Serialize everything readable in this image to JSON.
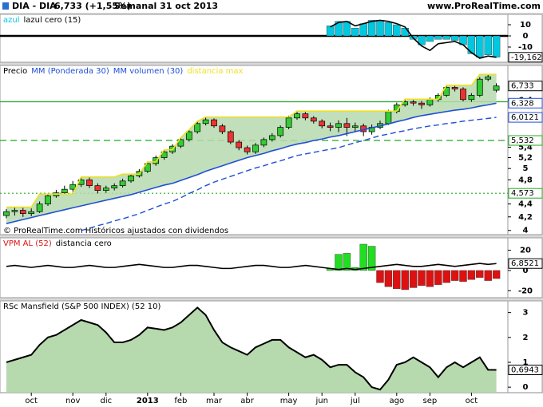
{
  "header": {
    "symbol": "DIA - DIA",
    "quote": "6,733 (+1,55%)",
    "period": "Semanal  31 oct 2013",
    "site": "www.ProRealTime.com"
  },
  "chart_data": [
    {
      "type": "bar",
      "ylim": [
        -23.6,
        19.3
      ],
      "yticks": [
        10,
        0,
        -10
      ],
      "zero_line": true,
      "series": [
        {
          "name": "azul",
          "color": "#00c8e0",
          "values": [
            null,
            null,
            null,
            null,
            null,
            null,
            null,
            null,
            null,
            null,
            null,
            null,
            null,
            null,
            null,
            null,
            null,
            null,
            null,
            null,
            null,
            null,
            null,
            null,
            null,
            null,
            null,
            null,
            null,
            null,
            null,
            null,
            null,
            null,
            null,
            null,
            null,
            null,
            null,
            9,
            13,
            13,
            7,
            11,
            14,
            14,
            12,
            10,
            7,
            -3,
            -8,
            -5,
            -3,
            -3,
            -4,
            -8,
            -16,
            -19,
            -17,
            -19
          ]
        },
        {
          "name": "lazul cero (15)",
          "type": "line",
          "color": "#000000",
          "last_label": "-19,162",
          "values": [
            null,
            null,
            null,
            null,
            null,
            null,
            null,
            null,
            null,
            null,
            null,
            null,
            null,
            null,
            null,
            null,
            null,
            null,
            null,
            null,
            null,
            null,
            null,
            null,
            null,
            null,
            null,
            null,
            null,
            null,
            null,
            null,
            null,
            null,
            null,
            null,
            null,
            null,
            null,
            8,
            12,
            13,
            9,
            11,
            13,
            14,
            13,
            11,
            8,
            -2,
            -9,
            -13,
            -7,
            -6,
            -5,
            -8,
            -15,
            -20,
            -18,
            -19.162
          ]
        }
      ]
    },
    {
      "type": "candlestick",
      "ylim": [
        3.94,
        7.25
      ],
      "log_scale": true,
      "yticks": [
        4,
        {
          "value": 4.2,
          "label": "4,2"
        },
        {
          "value": 4.4,
          "label": "4,4"
        },
        {
          "value": 4.8,
          "label": "4,8"
        },
        5,
        {
          "value": 5.2,
          "label": "5,2"
        },
        {
          "value": 5.4,
          "label": "5,4"
        },
        {
          "value": 6.4,
          "label": "6,4"
        }
      ],
      "note": "© ProRealTime.com Históricos ajustados con dividendos",
      "level_color": "#22aa22",
      "levels": [
        {
          "value": 6.36,
          "style": "solid"
        },
        {
          "value": 5.532,
          "label": "5,532",
          "style": "dashed"
        },
        {
          "value": 4.573,
          "label": "4,573",
          "style": "dotted"
        }
      ],
      "series": [
        {
          "name": "Precio",
          "type": "candlestick",
          "color": "#000000",
          "up_color": "#33cc33",
          "down_color": "#ee3333",
          "last_label": "6,733",
          "open": [
            4.22,
            4.28,
            4.3,
            4.25,
            4.28,
            4.4,
            4.53,
            4.58,
            4.64,
            4.72,
            4.8,
            4.7,
            4.62,
            4.66,
            4.7,
            4.78,
            4.87,
            4.95,
            5.09,
            5.2,
            5.31,
            5.42,
            5.55,
            5.71,
            5.88,
            5.96,
            5.83,
            5.71,
            5.5,
            5.39,
            5.31,
            5.44,
            5.55,
            5.63,
            5.8,
            6.0,
            6.09,
            6.0,
            5.93,
            5.83,
            5.8,
            5.88,
            5.8,
            5.83,
            5.71,
            5.8,
            5.88,
            6.14,
            6.29,
            6.36,
            6.33,
            6.29,
            6.41,
            6.51,
            6.7,
            6.66,
            6.41,
            6.51,
            6.9,
            6.63
          ],
          "high": [
            4.32,
            4.35,
            4.34,
            4.33,
            4.44,
            4.56,
            4.63,
            4.7,
            4.78,
            4.85,
            4.84,
            4.74,
            4.7,
            4.74,
            4.82,
            4.9,
            4.99,
            5.12,
            5.24,
            5.35,
            5.46,
            5.59,
            5.75,
            5.93,
            6.02,
            5.99,
            5.87,
            5.74,
            5.54,
            5.43,
            5.48,
            5.59,
            5.68,
            5.84,
            6.05,
            6.15,
            6.13,
            6.04,
            5.97,
            5.9,
            5.95,
            6.0,
            5.9,
            5.88,
            5.86,
            5.94,
            6.18,
            6.34,
            6.42,
            6.4,
            6.38,
            6.46,
            6.56,
            6.75,
            6.76,
            6.7,
            6.56,
            6.95,
            7.02,
            6.8
          ],
          "low": [
            4.18,
            4.22,
            4.2,
            4.21,
            4.26,
            4.37,
            4.5,
            4.55,
            4.6,
            4.68,
            4.66,
            4.57,
            4.58,
            4.62,
            4.67,
            4.75,
            4.84,
            4.92,
            5.05,
            5.16,
            5.27,
            5.38,
            5.51,
            5.67,
            5.84,
            5.79,
            5.66,
            5.46,
            5.34,
            5.26,
            5.27,
            5.4,
            5.51,
            5.59,
            5.76,
            5.96,
            5.95,
            5.88,
            5.78,
            5.72,
            5.7,
            5.62,
            5.7,
            5.62,
            5.65,
            5.76,
            5.85,
            6.1,
            6.25,
            6.27,
            6.2,
            6.25,
            6.36,
            6.47,
            6.6,
            6.37,
            6.36,
            6.47,
            6.85,
            6.58
          ],
          "close": [
            4.28,
            4.3,
            4.25,
            4.28,
            4.4,
            4.53,
            4.58,
            4.64,
            4.72,
            4.8,
            4.7,
            4.62,
            4.66,
            4.7,
            4.78,
            4.87,
            4.95,
            5.09,
            5.2,
            5.31,
            5.42,
            5.55,
            5.71,
            5.88,
            5.96,
            5.83,
            5.71,
            5.5,
            5.39,
            5.31,
            5.44,
            5.55,
            5.63,
            5.8,
            6.0,
            6.09,
            6.0,
            5.93,
            5.83,
            5.8,
            5.88,
            5.8,
            5.83,
            5.71,
            5.8,
            5.88,
            6.14,
            6.29,
            6.36,
            6.33,
            6.29,
            6.41,
            6.51,
            6.7,
            6.66,
            6.41,
            6.51,
            6.9,
            6.96,
            6.733
          ]
        },
        {
          "name": "MM (Ponderada 30)",
          "type": "line",
          "color": "#1f4fd8",
          "last_label": "6,328",
          "values": [
            4.1,
            4.13,
            4.16,
            4.19,
            4.22,
            4.25,
            4.28,
            4.31,
            4.34,
            4.37,
            4.4,
            4.43,
            4.46,
            4.49,
            4.52,
            4.55,
            4.59,
            4.63,
            4.67,
            4.71,
            4.74,
            4.79,
            4.84,
            4.89,
            4.95,
            5.0,
            5.05,
            5.1,
            5.15,
            5.2,
            5.24,
            5.28,
            5.33,
            5.37,
            5.42,
            5.46,
            5.49,
            5.53,
            5.56,
            5.6,
            5.63,
            5.67,
            5.71,
            5.75,
            5.79,
            5.83,
            5.87,
            5.92,
            5.96,
            6.01,
            6.05,
            6.08,
            6.11,
            6.14,
            6.17,
            6.19,
            6.22,
            6.26,
            6.29,
            6.328
          ]
        },
        {
          "name": "MM volumen (30)",
          "type": "line",
          "dashed": true,
          "color": "#1f4fd8",
          "last_label": "6,0121",
          "values": [
            null,
            null,
            null,
            null,
            null,
            null,
            null,
            null,
            null,
            4.0,
            4.03,
            4.07,
            4.1,
            4.14,
            4.17,
            4.21,
            4.25,
            4.3,
            4.35,
            4.4,
            4.44,
            4.5,
            4.57,
            4.63,
            4.7,
            4.76,
            4.81,
            4.86,
            4.91,
            4.96,
            5.01,
            5.05,
            5.1,
            5.14,
            5.19,
            5.24,
            5.27,
            5.3,
            5.33,
            5.36,
            5.39,
            5.44,
            5.49,
            5.53,
            5.58,
            5.63,
            5.66,
            5.7,
            5.73,
            5.77,
            5.8,
            5.83,
            5.85,
            5.88,
            5.9,
            5.93,
            5.95,
            5.97,
            5.99,
            6.0121
          ]
        },
        {
          "name": "distancia max",
          "type": "line",
          "color": "#f0e020",
          "fill": "#b6d9ae",
          "values": [
            4.35,
            4.35,
            4.35,
            4.35,
            4.56,
            4.56,
            4.56,
            4.56,
            4.56,
            4.85,
            4.85,
            4.85,
            4.85,
            4.85,
            4.9,
            4.9,
            4.9,
            5.12,
            5.12,
            5.35,
            5.35,
            5.59,
            5.75,
            5.93,
            6.02,
            6.02,
            6.02,
            6.02,
            6.02,
            6.02,
            6.02,
            6.02,
            6.02,
            6.02,
            6.02,
            6.15,
            6.15,
            6.15,
            6.15,
            6.15,
            6.15,
            6.15,
            6.15,
            6.15,
            6.15,
            6.15,
            6.15,
            6.15,
            6.42,
            6.42,
            6.42,
            6.42,
            6.42,
            6.75,
            6.75,
            6.75,
            6.75,
            7.02,
            7.02,
            7.02
          ]
        }
      ]
    },
    {
      "type": "bar",
      "ylim": [
        -26.9,
        32.3
      ],
      "yticks": [
        20,
        0,
        -20
      ],
      "series": [
        {
          "name": "VPM AL (52)",
          "colors": {
            "positive": "#22dd22",
            "negative": "#dd1111"
          },
          "values": [
            null,
            null,
            null,
            null,
            null,
            null,
            null,
            null,
            null,
            null,
            null,
            null,
            null,
            null,
            null,
            null,
            null,
            null,
            null,
            null,
            null,
            null,
            null,
            null,
            null,
            null,
            null,
            null,
            null,
            null,
            null,
            null,
            null,
            null,
            null,
            null,
            null,
            null,
            null,
            2,
            16,
            17,
            3,
            26,
            24,
            -12,
            -16,
            -18,
            -19,
            -17,
            -15,
            -16,
            -14,
            -12,
            -10,
            -11,
            -9,
            -7,
            -10,
            -8
          ]
        },
        {
          "name": "distancia cero",
          "type": "line",
          "color": "#000000",
          "last_label": "6,8521",
          "values": [
            4,
            5,
            4,
            3,
            4,
            5,
            4,
            3,
            3,
            4,
            5,
            4,
            3,
            3,
            4,
            5,
            6,
            5,
            4,
            3,
            3,
            4,
            5,
            5,
            4,
            3,
            2,
            2,
            3,
            4,
            5,
            5,
            4,
            3,
            3,
            4,
            5,
            4,
            3,
            2,
            1,
            2,
            1,
            2,
            3,
            4,
            5,
            6,
            5,
            4,
            4,
            5,
            6,
            5,
            4,
            5,
            6,
            7,
            6,
            6.8521
          ]
        }
      ]
    },
    {
      "type": "area",
      "ylim": [
        -0.22,
        3.47
      ],
      "yticks": [
        3,
        2,
        1,
        0
      ],
      "categories": [
        null,
        null,
        null,
        "oct",
        null,
        null,
        null,
        null,
        "nov",
        null,
        null,
        null,
        "dic",
        null,
        null,
        null,
        null,
        "2013",
        null,
        null,
        null,
        "feb",
        null,
        null,
        null,
        "mar",
        null,
        null,
        null,
        "abr",
        null,
        null,
        null,
        null,
        "may",
        null,
        null,
        null,
        "jun",
        null,
        null,
        null,
        "jul",
        null,
        null,
        null,
        null,
        "ago",
        null,
        null,
        null,
        "sep",
        null,
        null,
        null,
        null,
        "oct",
        null,
        null,
        null
      ],
      "series": [
        {
          "name": "RSc Mansfield (S&P 500 INDEX) (52 10)",
          "color": "#000000",
          "fill": "#b6d9ae",
          "last_label": "0,6943",
          "values": [
            1.0,
            1.1,
            1.2,
            1.3,
            1.7,
            2.0,
            2.1,
            2.3,
            2.5,
            2.7,
            2.6,
            2.5,
            2.2,
            1.8,
            1.8,
            1.9,
            2.1,
            2.4,
            2.35,
            2.3,
            2.4,
            2.6,
            2.9,
            3.2,
            2.9,
            2.3,
            1.8,
            1.6,
            1.45,
            1.3,
            1.6,
            1.75,
            1.9,
            1.9,
            1.6,
            1.4,
            1.2,
            1.3,
            1.1,
            0.8,
            0.9,
            0.9,
            0.6,
            0.4,
            0.0,
            -0.1,
            0.3,
            0.9,
            1.0,
            1.2,
            1.0,
            0.8,
            0.4,
            0.8,
            1.0,
            0.8,
            1.0,
            1.2,
            0.7,
            0.6943
          ]
        }
      ]
    }
  ]
}
